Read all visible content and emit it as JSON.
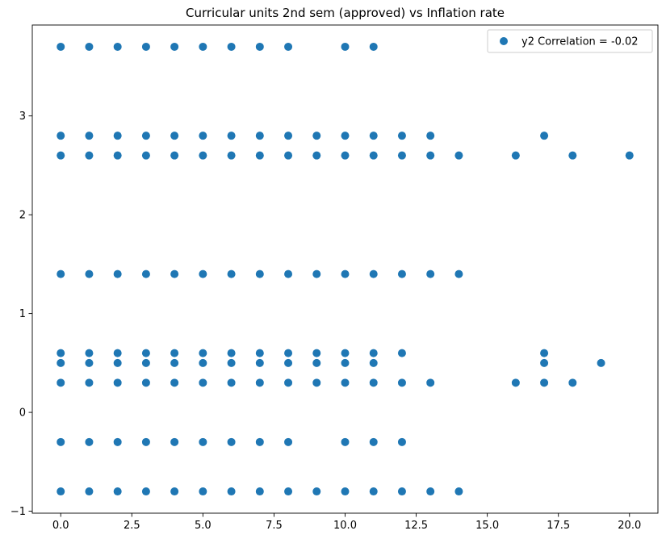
{
  "chart_data": {
    "type": "scatter",
    "title": "Curricular units 2nd sem (approved) vs Inflation rate",
    "xlabel": "",
    "ylabel": "",
    "xlim": [
      -1.0,
      21.0
    ],
    "ylim": [
      -1.02,
      3.92
    ],
    "x_ticks": [
      0.0,
      2.5,
      5.0,
      7.5,
      10.0,
      12.5,
      15.0,
      17.5,
      20.0
    ],
    "x_tick_labels": [
      "0.0",
      "2.5",
      "5.0",
      "7.5",
      "10.0",
      "12.5",
      "15.0",
      "17.5",
      "20.0"
    ],
    "y_ticks": [
      -1,
      0,
      1,
      2,
      3
    ],
    "y_tick_labels": [
      "−1",
      "0",
      "1",
      "2",
      "3"
    ],
    "grid": false,
    "legend_position": "top-right",
    "series": [
      {
        "name": "y2 Correlation = -0.02",
        "color": "#1f77b4",
        "points": [
          [
            0,
            3.7
          ],
          [
            1,
            3.7
          ],
          [
            2,
            3.7
          ],
          [
            3,
            3.7
          ],
          [
            4,
            3.7
          ],
          [
            5,
            3.7
          ],
          [
            6,
            3.7
          ],
          [
            7,
            3.7
          ],
          [
            8,
            3.7
          ],
          [
            10,
            3.7
          ],
          [
            11,
            3.7
          ],
          [
            0,
            2.8
          ],
          [
            1,
            2.8
          ],
          [
            2,
            2.8
          ],
          [
            3,
            2.8
          ],
          [
            4,
            2.8
          ],
          [
            5,
            2.8
          ],
          [
            6,
            2.8
          ],
          [
            7,
            2.8
          ],
          [
            8,
            2.8
          ],
          [
            9,
            2.8
          ],
          [
            10,
            2.8
          ],
          [
            11,
            2.8
          ],
          [
            12,
            2.8
          ],
          [
            13,
            2.8
          ],
          [
            17,
            2.8
          ],
          [
            0,
            2.6
          ],
          [
            1,
            2.6
          ],
          [
            2,
            2.6
          ],
          [
            3,
            2.6
          ],
          [
            4,
            2.6
          ],
          [
            5,
            2.6
          ],
          [
            6,
            2.6
          ],
          [
            7,
            2.6
          ],
          [
            8,
            2.6
          ],
          [
            9,
            2.6
          ],
          [
            10,
            2.6
          ],
          [
            11,
            2.6
          ],
          [
            12,
            2.6
          ],
          [
            13,
            2.6
          ],
          [
            14,
            2.6
          ],
          [
            16,
            2.6
          ],
          [
            18,
            2.6
          ],
          [
            20,
            2.6
          ],
          [
            0,
            1.4
          ],
          [
            1,
            1.4
          ],
          [
            2,
            1.4
          ],
          [
            3,
            1.4
          ],
          [
            4,
            1.4
          ],
          [
            5,
            1.4
          ],
          [
            6,
            1.4
          ],
          [
            7,
            1.4
          ],
          [
            8,
            1.4
          ],
          [
            9,
            1.4
          ],
          [
            10,
            1.4
          ],
          [
            11,
            1.4
          ],
          [
            12,
            1.4
          ],
          [
            13,
            1.4
          ],
          [
            14,
            1.4
          ],
          [
            0,
            0.6
          ],
          [
            1,
            0.6
          ],
          [
            2,
            0.6
          ],
          [
            3,
            0.6
          ],
          [
            4,
            0.6
          ],
          [
            5,
            0.6
          ],
          [
            6,
            0.6
          ],
          [
            7,
            0.6
          ],
          [
            8,
            0.6
          ],
          [
            9,
            0.6
          ],
          [
            10,
            0.6
          ],
          [
            11,
            0.6
          ],
          [
            12,
            0.6
          ],
          [
            17,
            0.6
          ],
          [
            0,
            0.5
          ],
          [
            1,
            0.5
          ],
          [
            2,
            0.5
          ],
          [
            3,
            0.5
          ],
          [
            4,
            0.5
          ],
          [
            5,
            0.5
          ],
          [
            6,
            0.5
          ],
          [
            7,
            0.5
          ],
          [
            8,
            0.5
          ],
          [
            9,
            0.5
          ],
          [
            10,
            0.5
          ],
          [
            11,
            0.5
          ],
          [
            17,
            0.5
          ],
          [
            19,
            0.5
          ],
          [
            0,
            0.3
          ],
          [
            1,
            0.3
          ],
          [
            2,
            0.3
          ],
          [
            3,
            0.3
          ],
          [
            4,
            0.3
          ],
          [
            5,
            0.3
          ],
          [
            6,
            0.3
          ],
          [
            7,
            0.3
          ],
          [
            8,
            0.3
          ],
          [
            9,
            0.3
          ],
          [
            10,
            0.3
          ],
          [
            11,
            0.3
          ],
          [
            12,
            0.3
          ],
          [
            13,
            0.3
          ],
          [
            16,
            0.3
          ],
          [
            17,
            0.3
          ],
          [
            18,
            0.3
          ],
          [
            0,
            -0.3
          ],
          [
            1,
            -0.3
          ],
          [
            2,
            -0.3
          ],
          [
            3,
            -0.3
          ],
          [
            4,
            -0.3
          ],
          [
            5,
            -0.3
          ],
          [
            6,
            -0.3
          ],
          [
            7,
            -0.3
          ],
          [
            8,
            -0.3
          ],
          [
            10,
            -0.3
          ],
          [
            11,
            -0.3
          ],
          [
            12,
            -0.3
          ],
          [
            0,
            -0.8
          ],
          [
            1,
            -0.8
          ],
          [
            2,
            -0.8
          ],
          [
            3,
            -0.8
          ],
          [
            4,
            -0.8
          ],
          [
            5,
            -0.8
          ],
          [
            6,
            -0.8
          ],
          [
            7,
            -0.8
          ],
          [
            8,
            -0.8
          ],
          [
            9,
            -0.8
          ],
          [
            10,
            -0.8
          ],
          [
            11,
            -0.8
          ],
          [
            12,
            -0.8
          ],
          [
            13,
            -0.8
          ],
          [
            14,
            -0.8
          ]
        ]
      }
    ]
  }
}
